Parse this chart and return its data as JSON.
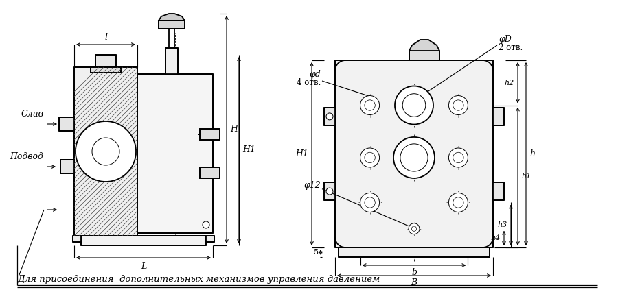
{
  "bg_color": "#ffffff",
  "title_text": "Для присоединения  дополнительных механизмов управления давлением",
  "label_l": "l",
  "label_L": "L",
  "label_H": "H",
  "label_H1": "H1",
  "label_h": "h",
  "label_h1": "h1",
  "label_h2": "h2",
  "label_h3": "h3",
  "label_h4": "h4",
  "label_b": "b",
  "label_B": "B",
  "label_phiD": "φD",
  "label_phid": "φd",
  "label_phi12": "φ12",
  "label_2otv": "2 отв.",
  "label_4otv": "4 отв.",
  "label_5": "5",
  "label_sliv": "Слив",
  "label_podvod": "Подвод"
}
